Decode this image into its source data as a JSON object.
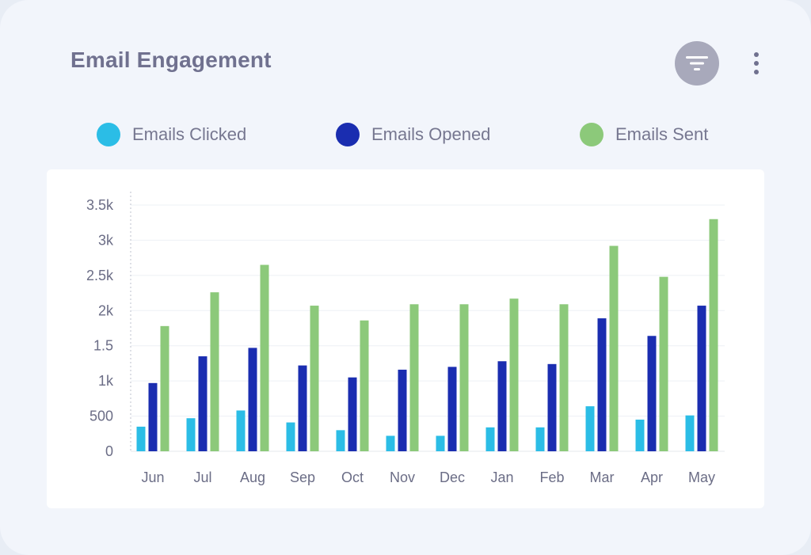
{
  "header": {
    "title": "Email Engagement",
    "filter_icon": "filter-icon",
    "more_icon": "more-vertical-icon"
  },
  "legend": [
    {
      "label": "Emails Clicked",
      "color": "#2bbde6"
    },
    {
      "label": "Emails Opened",
      "color": "#1a2db0"
    },
    {
      "label": "Emails Sent",
      "color": "#8cc97a"
    }
  ],
  "chart_data": {
    "type": "bar",
    "categories": [
      "Jun",
      "Jul",
      "Aug",
      "Sep",
      "Oct",
      "Nov",
      "Dec",
      "Jan",
      "Feb",
      "Mar",
      "Apr",
      "May"
    ],
    "series": [
      {
        "name": "Emails Clicked",
        "color": "#2bbde6",
        "values": [
          350,
          470,
          580,
          410,
          300,
          220,
          220,
          340,
          340,
          640,
          450,
          510
        ]
      },
      {
        "name": "Emails Opened",
        "color": "#1a2db0",
        "values": [
          970,
          1350,
          1470,
          1220,
          1050,
          1160,
          1200,
          1280,
          1240,
          1890,
          1640,
          2070
        ]
      },
      {
        "name": "Emails Sent",
        "color": "#8cc97a",
        "values": [
          1780,
          2260,
          2650,
          2070,
          1860,
          2090,
          2090,
          2170,
          2090,
          2920,
          2480,
          3300
        ]
      }
    ],
    "y_ticks": [
      "0",
      "500",
      "1k",
      "1.5",
      "2k",
      "2.5k",
      "3k",
      "3.5k"
    ],
    "ylim": [
      0,
      3500
    ],
    "grid": true,
    "legend_position": "top"
  }
}
